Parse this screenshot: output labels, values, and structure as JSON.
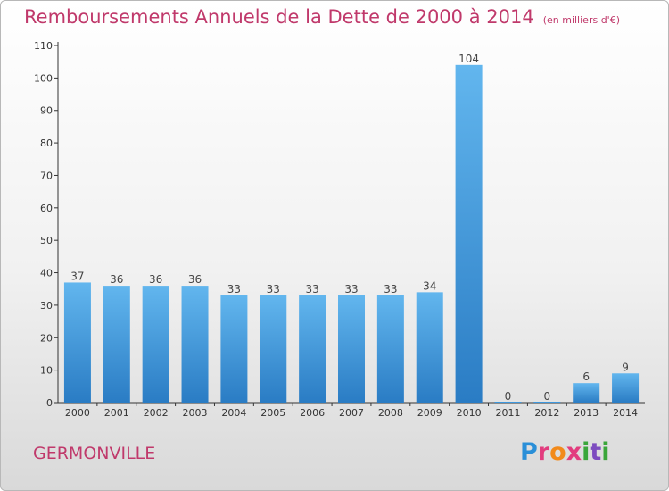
{
  "chart_data": {
    "type": "bar",
    "title": "Remboursements Annuels de la Dette de 2000 à 2014",
    "subtitle": "(en milliers d'€)",
    "categories": [
      "2000",
      "2001",
      "2002",
      "2003",
      "2004",
      "2005",
      "2006",
      "2007",
      "2008",
      "2009",
      "2010",
      "2011",
      "2012",
      "2013",
      "2014"
    ],
    "values": [
      37,
      36,
      36,
      36,
      33,
      33,
      33,
      33,
      33,
      34,
      104,
      0,
      0,
      6,
      9
    ],
    "ylim": [
      0,
      110
    ],
    "yticks": [
      0,
      10,
      20,
      30,
      40,
      50,
      60,
      70,
      80,
      90,
      100,
      110
    ],
    "grid": false,
    "bar_color": "#3e97dc",
    "label_color": "#444444"
  },
  "footer": {
    "town": "GERMONVILLE",
    "logo_letters": [
      "P",
      "r",
      "o",
      "x",
      "i",
      "t",
      "i"
    ]
  },
  "colors": {
    "title": "#c0396b",
    "axis": "#333333"
  }
}
